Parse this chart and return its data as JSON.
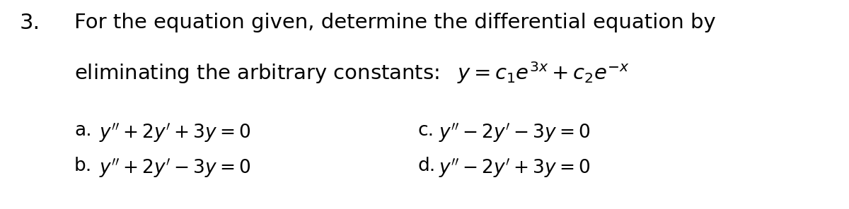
{
  "background_color": "#ffffff",
  "text_color": "#000000",
  "number": "3.",
  "line1": "For the equation given, determine the differential equation by",
  "line2": "eliminating the arbitrary constants:  $y = c_1e^{3x} + c_2e^{-x}$",
  "opt_a_lbl": "a.",
  "opt_a": "$y'' + 2y' + 3y = 0$",
  "opt_b_lbl": "b.",
  "opt_b": "$y'' + 2y' - 3y = 0$",
  "opt_c_lbl": "c.",
  "opt_c": "$y'' - 2y' -3y = 0$",
  "opt_d_lbl": "d.",
  "opt_d": "$y'' - 2y' + 3y = 0$",
  "fontsize_num": 22,
  "fontsize_main": 21,
  "fontsize_opt": 19,
  "fig_width": 12.0,
  "fig_height": 2.96,
  "dpi": 100
}
